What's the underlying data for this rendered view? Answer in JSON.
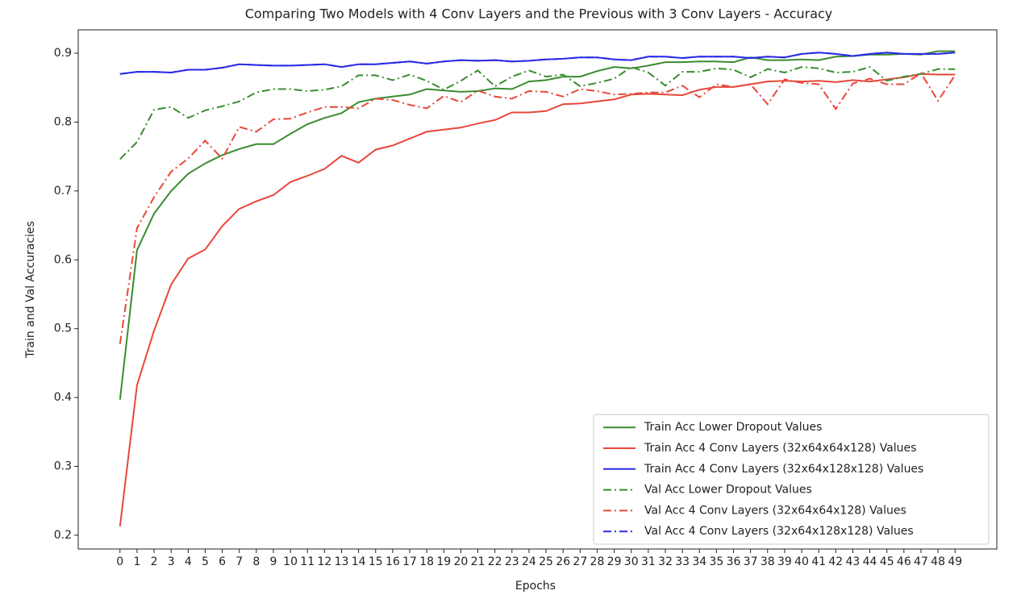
{
  "chart_data": {
    "type": "line",
    "title": "Comparing Two Models with 4 Conv Layers and the Previous with 3 Conv Layers - Accuracy",
    "x_label": "Epochs",
    "y_label": "Train and Val Accuracies",
    "x": [
      0,
      1,
      2,
      3,
      4,
      5,
      6,
      7,
      8,
      9,
      10,
      11,
      12,
      13,
      14,
      15,
      16,
      17,
      18,
      19,
      20,
      21,
      22,
      23,
      24,
      25,
      26,
      27,
      28,
      29,
      30,
      31,
      32,
      33,
      34,
      35,
      36,
      37,
      38,
      39,
      40,
      41,
      42,
      43,
      44,
      45,
      46,
      47,
      48,
      49
    ],
    "xlim": [
      -2.45,
      51.45
    ],
    "xticks": [
      0,
      1,
      2,
      3,
      4,
      5,
      6,
      7,
      8,
      9,
      10,
      11,
      12,
      13,
      14,
      15,
      16,
      17,
      18,
      19,
      20,
      21,
      22,
      23,
      24,
      25,
      26,
      27,
      28,
      29,
      30,
      31,
      32,
      33,
      34,
      35,
      36,
      37,
      38,
      39,
      40,
      41,
      42,
      43,
      44,
      45,
      46,
      47,
      48,
      49
    ],
    "ylim": [
      0.18,
      0.934
    ],
    "yticks": [
      0.2,
      0.3,
      0.4,
      0.5,
      0.6,
      0.7,
      0.8,
      0.9
    ],
    "legend": "lower right",
    "series": [
      {
        "name": "Train Acc Lower Dropout Values",
        "color": "#3a8c2f",
        "style": "solid",
        "values": [
          0.397,
          0.614,
          0.667,
          0.7,
          0.725,
          0.74,
          0.752,
          0.761,
          0.768,
          0.768,
          0.783,
          0.797,
          0.806,
          0.813,
          0.829,
          0.834,
          0.837,
          0.84,
          0.848,
          0.846,
          0.844,
          0.845,
          0.849,
          0.848,
          0.859,
          0.861,
          0.866,
          0.866,
          0.874,
          0.88,
          0.878,
          0.882,
          0.887,
          0.887,
          0.888,
          0.888,
          0.887,
          0.894,
          0.89,
          0.89,
          0.891,
          0.89,
          0.895,
          0.896,
          0.898,
          0.898,
          0.899,
          0.898,
          0.903,
          0.903
        ]
      },
      {
        "name": "Train Acc 4 Conv Layers (32x64x64x128) Values",
        "color": "#e8473a",
        "style": "solid",
        "values": [
          0.213,
          0.418,
          0.497,
          0.564,
          0.602,
          0.615,
          0.649,
          0.674,
          0.685,
          0.694,
          0.713,
          0.722,
          0.732,
          0.751,
          0.741,
          0.76,
          0.766,
          0.776,
          0.786,
          0.789,
          0.792,
          0.798,
          0.803,
          0.814,
          0.814,
          0.816,
          0.826,
          0.827,
          0.83,
          0.833,
          0.84,
          0.841,
          0.84,
          0.839,
          0.847,
          0.851,
          0.851,
          0.855,
          0.859,
          0.86,
          0.859,
          0.86,
          0.858,
          0.861,
          0.859,
          0.862,
          0.865,
          0.87,
          0.869,
          0.869
        ]
      },
      {
        "name": "Train Acc 4 Conv Layers (32x64x128x128) Values",
        "color": "#2a2ae6",
        "style": "solid",
        "values": [
          0.87,
          0.873,
          0.873,
          0.872,
          0.876,
          0.876,
          0.879,
          0.884,
          0.883,
          0.882,
          0.882,
          0.883,
          0.884,
          0.88,
          0.884,
          0.884,
          0.886,
          0.888,
          0.885,
          0.888,
          0.89,
          0.889,
          0.89,
          0.888,
          0.889,
          0.891,
          0.892,
          0.894,
          0.894,
          0.891,
          0.89,
          0.895,
          0.895,
          0.893,
          0.895,
          0.895,
          0.895,
          0.893,
          0.895,
          0.894,
          0.899,
          0.901,
          0.899,
          0.896,
          0.899,
          0.901,
          0.899,
          0.899,
          0.899,
          0.901
        ]
      },
      {
        "name": "Val Acc Lower Dropout Values",
        "color": "#3a8c2f",
        "style": "dashdot",
        "values": [
          0.746,
          0.771,
          0.818,
          0.822,
          0.806,
          0.817,
          0.823,
          0.83,
          0.843,
          0.848,
          0.848,
          0.845,
          0.847,
          0.852,
          0.868,
          0.868,
          0.861,
          0.869,
          0.86,
          0.847,
          0.86,
          0.875,
          0.852,
          0.866,
          0.875,
          0.866,
          0.869,
          0.852,
          0.857,
          0.863,
          0.88,
          0.872,
          0.853,
          0.873,
          0.873,
          0.878,
          0.876,
          0.865,
          0.877,
          0.872,
          0.88,
          0.878,
          0.872,
          0.873,
          0.88,
          0.86,
          0.866,
          0.87,
          0.877,
          0.877
        ]
      },
      {
        "name": "Val Acc 4 Conv Layers (32x64x64x128) Values",
        "color": "#e8473a",
        "style": "dashdot",
        "values": [
          0.478,
          0.646,
          0.691,
          0.728,
          0.747,
          0.773,
          0.747,
          0.793,
          0.786,
          0.804,
          0.805,
          0.814,
          0.822,
          0.822,
          0.82,
          0.834,
          0.832,
          0.825,
          0.82,
          0.838,
          0.829,
          0.846,
          0.837,
          0.834,
          0.845,
          0.844,
          0.837,
          0.848,
          0.845,
          0.84,
          0.841,
          0.843,
          0.843,
          0.853,
          0.836,
          0.855,
          0.851,
          0.855,
          0.826,
          0.862,
          0.857,
          0.855,
          0.819,
          0.856,
          0.863,
          0.855,
          0.855,
          0.871,
          0.831,
          0.868
        ]
      },
      {
        "name": "Val Acc 4 Conv Layers (32x64x128x128) Values",
        "color": "#2a2ae6",
        "style": "dashdot",
        "values": [
          0.87,
          0.873,
          0.873,
          0.872,
          0.876,
          0.876,
          0.879,
          0.884,
          0.883,
          0.882,
          0.882,
          0.883,
          0.884,
          0.88,
          0.884,
          0.884,
          0.886,
          0.888,
          0.885,
          0.888,
          0.89,
          0.889,
          0.89,
          0.888,
          0.889,
          0.891,
          0.892,
          0.894,
          0.894,
          0.891,
          0.89,
          0.895,
          0.895,
          0.893,
          0.895,
          0.895,
          0.895,
          0.893,
          0.895,
          0.894,
          0.899,
          0.901,
          0.899,
          0.896,
          0.899,
          0.901,
          0.899,
          0.899,
          0.899,
          0.901
        ]
      }
    ]
  }
}
